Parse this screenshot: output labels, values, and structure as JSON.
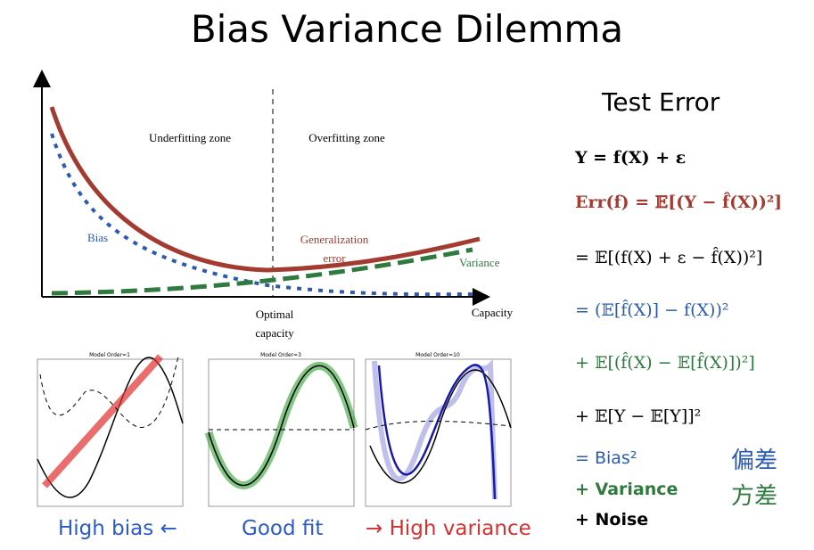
{
  "header": {
    "title": "Bias Variance Dilemma"
  },
  "diagram": {
    "underfitting": "Underfitting zone",
    "overfitting": "Overfitting zone",
    "bias": "Bias",
    "generalization": [
      "Generalization",
      "error"
    ],
    "variance": "Variance",
    "optimal": [
      "Optimal",
      "capacity"
    ],
    "capacity": "Capacity"
  },
  "examples": [
    {
      "title": "Model Order=1",
      "caption": "High bias ←"
    },
    {
      "title": "Model Order=3",
      "caption": "Good fit"
    },
    {
      "title": "Model Order=10",
      "caption": "→ High variance"
    }
  ],
  "formulas": {
    "heading": "Test Error",
    "lines": [
      "Y = f(X) + ε",
      "Err(f) = 𝔼[(Y − f̂(X))²]",
      "= 𝔼[(f(X) + ε − f̂(X))²]",
      "= (𝔼[f̂(X)] − f(X))²",
      "+ 𝔼[(f̂(X) − 𝔼[f̂(X)])²]",
      "+ 𝔼[Y − 𝔼[Y]]²"
    ],
    "summary": [
      {
        "term": "= Bias²",
        "chinese": "偏差"
      },
      {
        "term": "+ Variance",
        "chinese": "方差"
      },
      {
        "term": "+ Noise"
      }
    ]
  }
}
